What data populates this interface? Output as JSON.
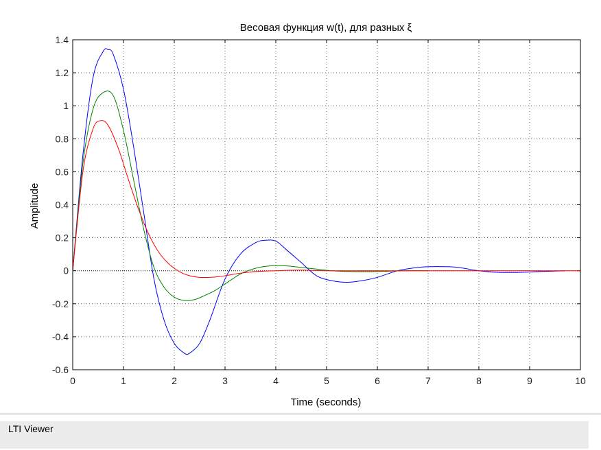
{
  "chart_data": {
    "type": "line",
    "title": "Весовая функция w(t), для разных ξ",
    "xlabel": "Time (seconds)",
    "ylabel": "Amplitude",
    "xlim": [
      0,
      10
    ],
    "ylim": [
      -0.6,
      1.4
    ],
    "xticks": [
      "0",
      "1",
      "2",
      "3",
      "4",
      "5",
      "6",
      "7",
      "8",
      "9",
      "10"
    ],
    "yticks": [
      "-0.6",
      "-0.4",
      "-0.2",
      "0",
      "0.2",
      "0.4",
      "0.6",
      "0.8",
      "1",
      "1.2",
      "1.4"
    ],
    "grid": true,
    "series": [
      {
        "color": "#0000ff",
        "x": [
          0,
          0.2,
          0.4,
          0.6,
          0.7,
          0.8,
          1.0,
          1.2,
          1.4,
          1.6,
          1.8,
          2.0,
          2.2,
          2.3,
          2.5,
          2.7,
          3.0,
          3.3,
          3.6,
          3.8,
          4.0,
          4.2,
          4.5,
          4.8,
          5.1,
          5.4,
          5.7,
          6.0,
          6.4,
          6.8,
          7.1,
          7.3,
          7.6,
          8.0,
          8.4,
          8.8,
          9.2,
          9.7
        ],
        "y": [
          0,
          0.7,
          1.17,
          1.33,
          1.34,
          1.31,
          1.1,
          0.75,
          0.35,
          -0.05,
          -0.3,
          -0.44,
          -0.5,
          -0.5,
          -0.44,
          -0.3,
          -0.05,
          0.1,
          0.17,
          0.185,
          0.18,
          0.13,
          0.05,
          -0.03,
          -0.06,
          -0.07,
          -0.06,
          -0.04,
          0,
          0.02,
          0.025,
          0.025,
          0.02,
          0,
          -0.01,
          -0.01,
          -0.005,
          0
        ]
      },
      {
        "color": "#008000",
        "x": [
          0,
          0.2,
          0.4,
          0.6,
          0.8,
          1.0,
          1.2,
          1.4,
          1.6,
          1.8,
          2.0,
          2.2,
          2.4,
          2.6,
          2.8,
          3.0,
          3.3,
          3.6,
          3.9,
          4.2,
          4.5,
          4.8,
          5.1,
          5.5,
          6.0,
          6.5,
          7.0
        ],
        "y": [
          0,
          0.65,
          0.98,
          1.08,
          1.06,
          0.85,
          0.55,
          0.25,
          0.02,
          -0.1,
          -0.16,
          -0.18,
          -0.175,
          -0.15,
          -0.12,
          -0.08,
          -0.02,
          0.015,
          0.03,
          0.03,
          0.02,
          0.01,
          0,
          -0.005,
          -0.005,
          0,
          0
        ]
      },
      {
        "color": "#ff0000",
        "x": [
          0,
          0.2,
          0.4,
          0.55,
          0.7,
          0.9,
          1.1,
          1.3,
          1.5,
          1.7,
          1.9,
          2.1,
          2.3,
          2.5,
          2.7,
          2.9,
          3.1,
          3.3,
          3.6,
          4.0,
          4.5,
          5.0,
          6.0,
          7.0,
          8.0,
          9.0,
          10.0
        ],
        "y": [
          0,
          0.6,
          0.86,
          0.91,
          0.88,
          0.74,
          0.55,
          0.37,
          0.22,
          0.11,
          0.04,
          -0.005,
          -0.03,
          -0.04,
          -0.04,
          -0.035,
          -0.025,
          -0.015,
          -0.005,
          0,
          0.004,
          0,
          0,
          0,
          0,
          0,
          0
        ]
      }
    ]
  },
  "status": {
    "text": "LTI Viewer"
  }
}
